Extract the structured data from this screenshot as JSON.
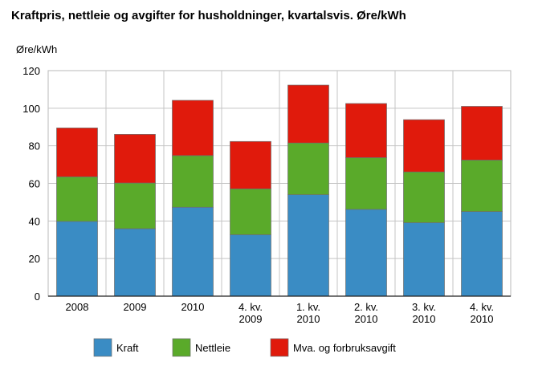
{
  "chart_data": {
    "type": "bar",
    "stacked": true,
    "title": "Kraftpris, nettleie og avgifter for husholdninger, kvartalsvis. Øre/kWh",
    "ylabel": "Øre/kWh",
    "xlabel": "",
    "ylim": [
      0,
      120
    ],
    "yticks": [
      0,
      20,
      40,
      60,
      80,
      100,
      120
    ],
    "grid": true,
    "legend_position": "bottom",
    "categories": [
      [
        "2008"
      ],
      [
        "2009"
      ],
      [
        "2010"
      ],
      [
        "4. kv.",
        "2009"
      ],
      [
        "1. kv.",
        "2010"
      ],
      [
        "2. kv.",
        "2010"
      ],
      [
        "3. kv.",
        "2010"
      ],
      [
        "4. kv.",
        "2010"
      ]
    ],
    "series": [
      {
        "name": "Kraft",
        "color": "#3a8cc4",
        "values": [
          39.8,
          35.9,
          47.3,
          32.7,
          54.0,
          46.2,
          39.1,
          45.0
        ]
      },
      {
        "name": "Nettleie",
        "color": "#5aaa2a",
        "values": [
          23.7,
          24.3,
          27.5,
          24.4,
          27.5,
          27.5,
          27.0,
          27.4
        ]
      },
      {
        "name": "Mva. og forbruksavgift",
        "color": "#e01a0c",
        "values": [
          26.0,
          25.9,
          29.4,
          25.2,
          30.8,
          28.8,
          27.8,
          28.6
        ]
      }
    ]
  }
}
